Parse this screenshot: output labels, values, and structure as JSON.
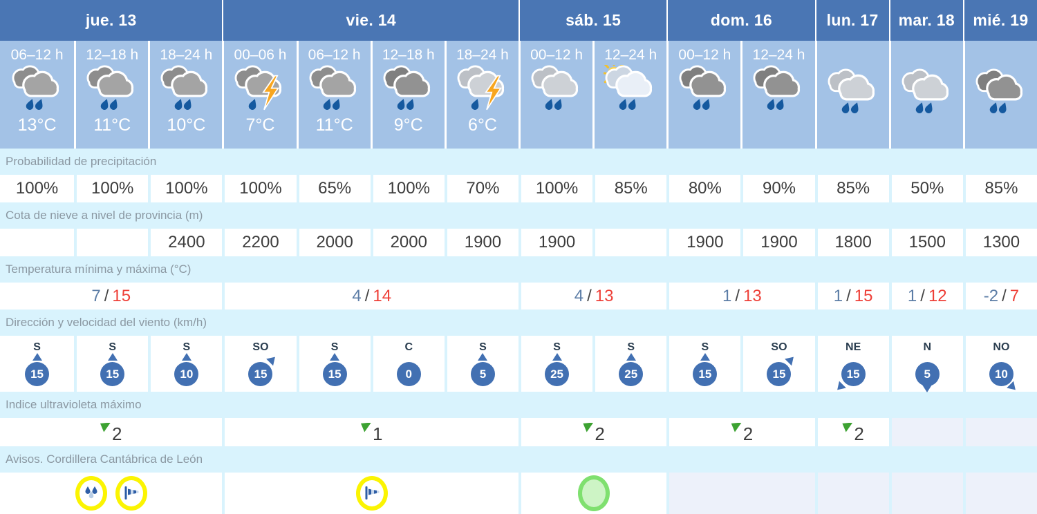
{
  "colors": {
    "header_blue": "#4a76b4",
    "period_blue": "#a3c2e6",
    "strip_cyan": "#d9f3fd",
    "cell_white": "#ffffff",
    "disabled_lavender": "#edf1fa",
    "text_dark": "#3d3d3d",
    "label_gray": "#8b98a2",
    "temp_min_blue": "#5c7da6",
    "temp_max_red": "#ee3f37",
    "wind_blue": "#4270b2",
    "uv_green": "#3da232",
    "warning_yellow": "#fbf402",
    "ok_green_border": "#7fe06f",
    "ok_green_fill": "#cdf4c5",
    "bolt_orange": "#f8a61f",
    "rain_drop_blue": "#15599f"
  },
  "days": [
    {
      "label": "jue. 13",
      "span": 3
    },
    {
      "label": "vie. 14",
      "span": 4
    },
    {
      "label": "sáb. 15",
      "span": 2
    },
    {
      "label": "dom. 16",
      "span": 2
    },
    {
      "label": "lun. 17",
      "span": 1
    },
    {
      "label": "mar. 18",
      "span": 1
    },
    {
      "label": "mié. 19",
      "span": 1
    }
  ],
  "periods": [
    {
      "time": "06–12 h",
      "temp": "13°C",
      "icon": "rain-icon",
      "tone": "gray",
      "drops": 2,
      "bolt": false,
      "sun": false
    },
    {
      "time": "12–18 h",
      "temp": "11°C",
      "icon": "rain-icon",
      "tone": "gray",
      "drops": 2,
      "bolt": false,
      "sun": false
    },
    {
      "time": "18–24 h",
      "temp": "10°C",
      "icon": "rain-icon",
      "tone": "gray",
      "drops": 2,
      "bolt": false,
      "sun": false
    },
    {
      "time": "00–06 h",
      "temp": "7°C",
      "icon": "storm-icon",
      "tone": "gray",
      "drops": 1,
      "bolt": true,
      "sun": false
    },
    {
      "time": "06–12 h",
      "temp": "11°C",
      "icon": "rain-icon",
      "tone": "gray",
      "drops": 2,
      "bolt": false,
      "sun": false
    },
    {
      "time": "12–18 h",
      "temp": "9°C",
      "icon": "rain-icon",
      "tone": "dark",
      "drops": 2,
      "bolt": false,
      "sun": false
    },
    {
      "time": "18–24 h",
      "temp": "6°C",
      "icon": "storm-icon",
      "tone": "light",
      "drops": 1,
      "bolt": true,
      "sun": false
    },
    {
      "time": "00–12 h",
      "temp": "",
      "icon": "rain-icon",
      "tone": "light",
      "drops": 2,
      "bolt": false,
      "sun": false
    },
    {
      "time": "12–24 h",
      "temp": "",
      "icon": "sun-rain-icon",
      "tone": "palest",
      "drops": 2,
      "bolt": false,
      "sun": true
    },
    {
      "time": "00–12 h",
      "temp": "",
      "icon": "rain-icon",
      "tone": "dark",
      "drops": 2,
      "bolt": false,
      "sun": false
    },
    {
      "time": "12–24 h",
      "temp": "",
      "icon": "rain-icon",
      "tone": "dark",
      "drops": 2,
      "bolt": false,
      "sun": false
    },
    {
      "time": "",
      "temp": "",
      "icon": "rain-icon",
      "tone": "light",
      "drops": 2,
      "bolt": false,
      "sun": false
    },
    {
      "time": "",
      "temp": "",
      "icon": "rain-icon",
      "tone": "light",
      "drops": 2,
      "bolt": false,
      "sun": false
    },
    {
      "time": "",
      "temp": "",
      "icon": "rain-icon",
      "tone": "dark",
      "drops": 2,
      "bolt": false,
      "sun": false
    }
  ],
  "rows": {
    "precip": {
      "label": "Probabilidad de precipitación",
      "values": [
        "100%",
        "100%",
        "100%",
        "100%",
        "65%",
        "100%",
        "70%",
        "100%",
        "85%",
        "80%",
        "90%",
        "85%",
        "50%",
        "85%"
      ]
    },
    "snow": {
      "label": "Cota de nieve a nivel de provincia (m)",
      "values": [
        "",
        "",
        "2400",
        "2200",
        "2000",
        "2000",
        "1900",
        "1900",
        "",
        "1900",
        "1900",
        "1800",
        "1500",
        "1300"
      ]
    },
    "temps": {
      "label": "Temperatura mínima y máxima (°C)",
      "values": [
        {
          "min": "7",
          "sep": "/",
          "max": "15"
        },
        {
          "min": "4",
          "sep": "/",
          "max": "14"
        },
        {
          "min": "4",
          "sep": "/",
          "max": "13"
        },
        {
          "min": "1",
          "sep": "/",
          "max": "13"
        },
        {
          "min": "1",
          "sep": "/",
          "max": "15"
        },
        {
          "min": "1",
          "sep": "/",
          "max": "12"
        },
        {
          "min": "-2",
          "sep": "/",
          "max": "7"
        }
      ]
    },
    "wind": {
      "label": "Dirección y velocidad del viento (km/h)",
      "values": [
        {
          "dir": "S",
          "speed": "15",
          "arrow": "up"
        },
        {
          "dir": "S",
          "speed": "15",
          "arrow": "up"
        },
        {
          "dir": "S",
          "speed": "10",
          "arrow": "up"
        },
        {
          "dir": "SO",
          "speed": "15",
          "arrow": "up-right"
        },
        {
          "dir": "S",
          "speed": "15",
          "arrow": "up"
        },
        {
          "dir": "C",
          "speed": "0",
          "arrow": "none"
        },
        {
          "dir": "S",
          "speed": "5",
          "arrow": "up"
        },
        {
          "dir": "S",
          "speed": "25",
          "arrow": "up"
        },
        {
          "dir": "S",
          "speed": "25",
          "arrow": "up"
        },
        {
          "dir": "S",
          "speed": "15",
          "arrow": "up"
        },
        {
          "dir": "SO",
          "speed": "15",
          "arrow": "up-right"
        },
        {
          "dir": "NE",
          "speed": "15",
          "arrow": "down-left"
        },
        {
          "dir": "N",
          "speed": "5",
          "arrow": "down"
        },
        {
          "dir": "NO",
          "speed": "10",
          "arrow": "down-right"
        }
      ]
    },
    "uv": {
      "label": "Indice ultravioleta máximo",
      "values": [
        {
          "value": "2",
          "disabled": false
        },
        {
          "value": "1",
          "disabled": false
        },
        {
          "value": "2",
          "disabled": false
        },
        {
          "value": "2",
          "disabled": false
        },
        {
          "value": "2",
          "disabled": false
        },
        {
          "value": "",
          "disabled": true
        },
        {
          "value": "",
          "disabled": true
        }
      ]
    },
    "warnings": {
      "label": "Avisos. Cordillera Cantábrica de León",
      "values": [
        {
          "icons": [
            "rain-warning",
            "wind-warning"
          ],
          "disabled": false
        },
        {
          "icons": [
            "wind-warning"
          ],
          "disabled": false
        },
        {
          "icons": [
            "no-warning"
          ],
          "disabled": false
        },
        {
          "icons": [],
          "disabled": true
        },
        {
          "icons": [],
          "disabled": true
        },
        {
          "icons": [],
          "disabled": true
        },
        {
          "icons": [],
          "disabled": true
        }
      ]
    }
  }
}
